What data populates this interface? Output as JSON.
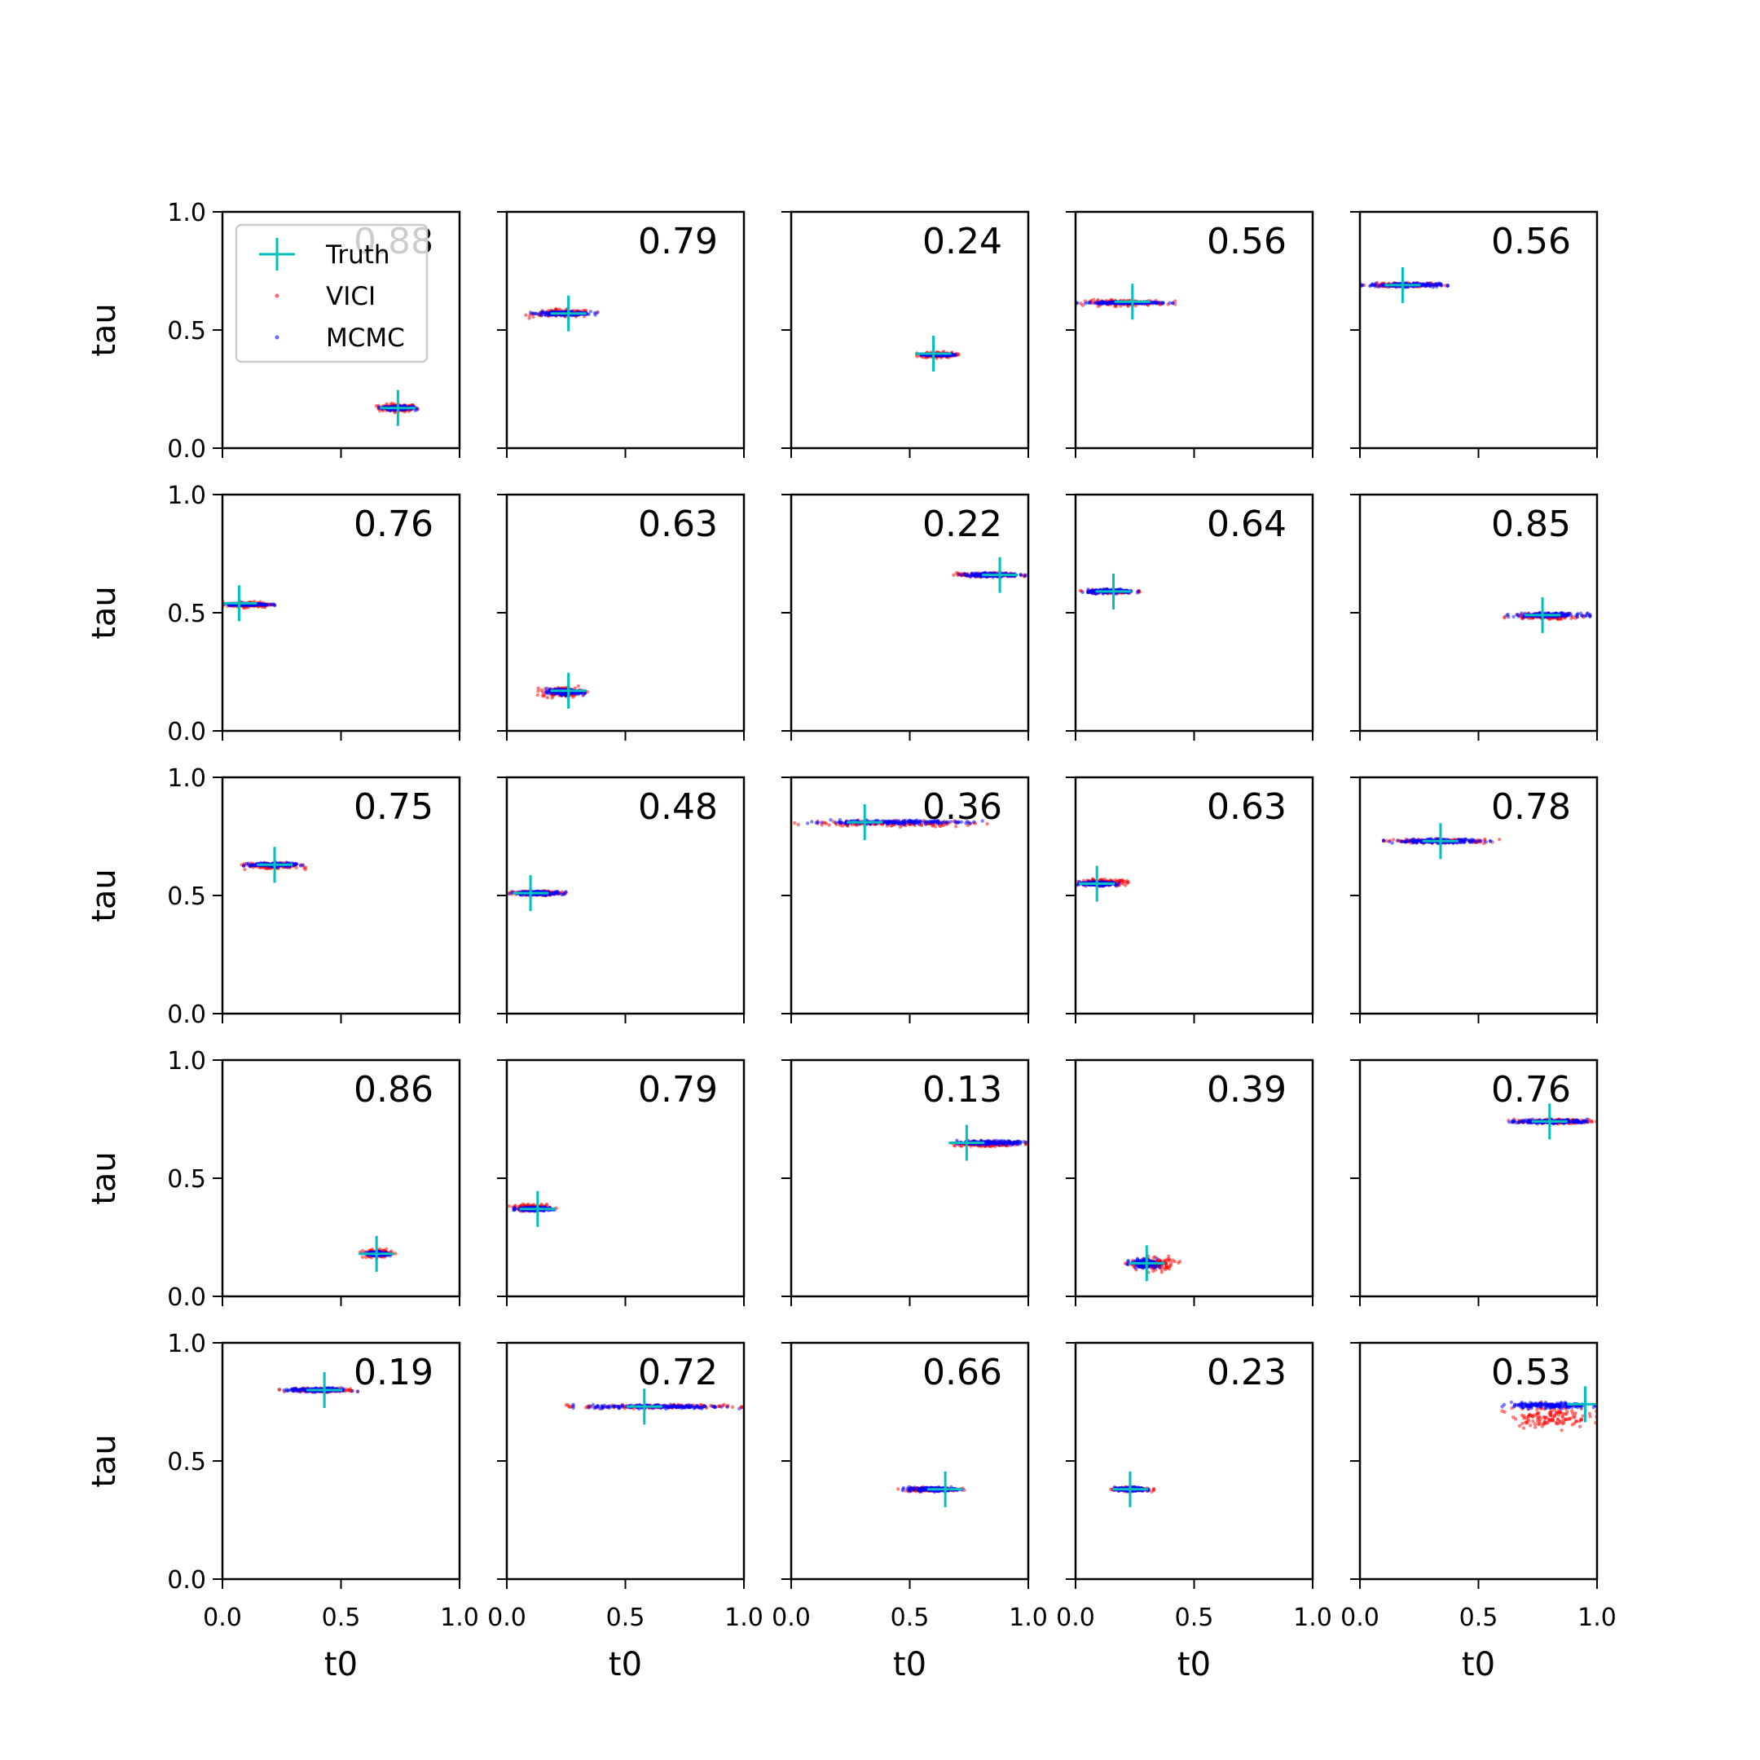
{
  "chart_data": {
    "type": "scatter",
    "grid": false,
    "xlabel": "t0",
    "ylabel": "tau",
    "xlim": [
      0,
      1
    ],
    "ylim": [
      0,
      1
    ],
    "xticks": [
      "0.0",
      "0.5",
      "1.0"
    ],
    "yticks": [
      "0.0",
      "0.5",
      "1.0"
    ],
    "legend": {
      "placement": "upper-left",
      "entries": [
        {
          "name": "Truth",
          "marker": "plus",
          "color": "#00bfbf"
        },
        {
          "name": "VICI",
          "marker": "dot",
          "color": "#ff0000"
        },
        {
          "name": "MCMC",
          "marker": "dot",
          "color": "#0000ff"
        }
      ]
    },
    "colors": {
      "truth": "#00bfbf",
      "vici": "#ff0000",
      "mcmc": "#0000ff"
    },
    "panels": [
      {
        "value": "0.88",
        "truth": [
          0.74,
          0.17
        ],
        "vici": {
          "x": [
            0.64,
            0.84
          ],
          "y": [
            0.15,
            0.19
          ]
        },
        "mcmc": {
          "x": [
            0.66,
            0.82
          ],
          "y": [
            0.16,
            0.18
          ]
        }
      },
      {
        "value": "0.79",
        "truth": [
          0.26,
          0.57
        ],
        "vici": {
          "x": [
            0.08,
            0.39
          ],
          "y": [
            0.55,
            0.59
          ]
        },
        "mcmc": {
          "x": [
            0.1,
            0.38
          ],
          "y": [
            0.56,
            0.58
          ]
        }
      },
      {
        "value": "0.24",
        "truth": [
          0.6,
          0.4
        ],
        "vici": {
          "x": [
            0.53,
            0.71
          ],
          "y": [
            0.38,
            0.41
          ]
        },
        "mcmc": {
          "x": [
            0.54,
            0.7
          ],
          "y": [
            0.39,
            0.4
          ]
        }
      },
      {
        "value": "0.56",
        "truth": [
          0.24,
          0.62
        ],
        "vici": {
          "x": [
            0.0,
            0.42
          ],
          "y": [
            0.6,
            0.63
          ]
        },
        "mcmc": {
          "x": [
            0.0,
            0.41
          ],
          "y": [
            0.61,
            0.62
          ]
        }
      },
      {
        "value": "0.56",
        "truth": [
          0.18,
          0.69
        ],
        "vici": {
          "x": [
            0.0,
            0.36
          ],
          "y": [
            0.68,
            0.7
          ]
        },
        "mcmc": {
          "x": [
            0.0,
            0.37
          ],
          "y": [
            0.68,
            0.7
          ]
        }
      },
      {
        "value": "0.76",
        "truth": [
          0.07,
          0.54
        ],
        "vici": {
          "x": [
            0.0,
            0.23
          ],
          "y": [
            0.52,
            0.55
          ]
        },
        "mcmc": {
          "x": [
            0.0,
            0.22
          ],
          "y": [
            0.53,
            0.54
          ]
        }
      },
      {
        "value": "0.63",
        "truth": [
          0.26,
          0.17
        ],
        "vici": {
          "x": [
            0.13,
            0.34
          ],
          "y": [
            0.14,
            0.19
          ]
        },
        "mcmc": {
          "x": [
            0.15,
            0.33
          ],
          "y": [
            0.15,
            0.18
          ]
        }
      },
      {
        "value": "0.22",
        "truth": [
          0.88,
          0.66
        ],
        "vici": {
          "x": [
            0.67,
            0.99
          ],
          "y": [
            0.65,
            0.67
          ]
        },
        "mcmc": {
          "x": [
            0.7,
            0.99
          ],
          "y": [
            0.65,
            0.67
          ]
        }
      },
      {
        "value": "0.64",
        "truth": [
          0.16,
          0.59
        ],
        "vici": {
          "x": [
            0.02,
            0.27
          ],
          "y": [
            0.58,
            0.6
          ]
        },
        "mcmc": {
          "x": [
            0.03,
            0.27
          ],
          "y": [
            0.58,
            0.6
          ]
        }
      },
      {
        "value": "0.85",
        "truth": [
          0.77,
          0.49
        ],
        "vici": {
          "x": [
            0.61,
            0.96
          ],
          "y": [
            0.47,
            0.5
          ]
        },
        "mcmc": {
          "x": [
            0.62,
            0.97
          ],
          "y": [
            0.48,
            0.5
          ]
        }
      },
      {
        "value": "0.75",
        "truth": [
          0.22,
          0.63
        ],
        "vici": {
          "x": [
            0.08,
            0.35
          ],
          "y": [
            0.61,
            0.64
          ]
        },
        "mcmc": {
          "x": [
            0.09,
            0.34
          ],
          "y": [
            0.62,
            0.64
          ]
        }
      },
      {
        "value": "0.48",
        "truth": [
          0.1,
          0.51
        ],
        "vici": {
          "x": [
            0.0,
            0.25
          ],
          "y": [
            0.5,
            0.52
          ]
        },
        "mcmc": {
          "x": [
            0.01,
            0.25
          ],
          "y": [
            0.5,
            0.52
          ]
        }
      },
      {
        "value": "0.36",
        "truth": [
          0.31,
          0.81
        ],
        "vici": {
          "x": [
            0.0,
            0.85
          ],
          "y": [
            0.79,
            0.82
          ]
        },
        "mcmc": {
          "x": [
            0.0,
            0.82
          ],
          "y": [
            0.8,
            0.82
          ]
        }
      },
      {
        "value": "0.63",
        "truth": [
          0.09,
          0.55
        ],
        "vici": {
          "x": [
            0.0,
            0.24
          ],
          "y": [
            0.54,
            0.57
          ]
        },
        "mcmc": {
          "x": [
            0.0,
            0.2
          ],
          "y": [
            0.54,
            0.56
          ]
        }
      },
      {
        "value": "0.78",
        "truth": [
          0.34,
          0.73
        ],
        "vici": {
          "x": [
            0.1,
            0.59
          ],
          "y": [
            0.72,
            0.74
          ]
        },
        "mcmc": {
          "x": [
            0.1,
            0.55
          ],
          "y": [
            0.72,
            0.74
          ]
        }
      },
      {
        "value": "0.86",
        "truth": [
          0.65,
          0.18
        ],
        "vici": {
          "x": [
            0.58,
            0.73
          ],
          "y": [
            0.16,
            0.2
          ]
        },
        "mcmc": {
          "x": [
            0.6,
            0.71
          ],
          "y": [
            0.17,
            0.19
          ]
        }
      },
      {
        "value": "0.79",
        "truth": [
          0.13,
          0.37
        ],
        "vici": {
          "x": [
            0.01,
            0.21
          ],
          "y": [
            0.36,
            0.39
          ]
        },
        "mcmc": {
          "x": [
            0.03,
            0.2
          ],
          "y": [
            0.36,
            0.38
          ]
        }
      },
      {
        "value": "0.13",
        "truth": [
          0.74,
          0.65
        ],
        "vici": {
          "x": [
            0.64,
            0.99
          ],
          "y": [
            0.63,
            0.66
          ]
        },
        "mcmc": {
          "x": [
            0.69,
            0.99
          ],
          "y": [
            0.64,
            0.66
          ]
        }
      },
      {
        "value": "0.39",
        "truth": [
          0.3,
          0.14
        ],
        "vici": {
          "x": [
            0.21,
            0.44
          ],
          "y": [
            0.1,
            0.17
          ]
        },
        "mcmc": {
          "x": [
            0.22,
            0.36
          ],
          "y": [
            0.12,
            0.16
          ]
        }
      },
      {
        "value": "0.76",
        "truth": [
          0.8,
          0.74
        ],
        "vici": {
          "x": [
            0.62,
            1.0
          ],
          "y": [
            0.73,
            0.75
          ]
        },
        "mcmc": {
          "x": [
            0.63,
            1.0
          ],
          "y": [
            0.73,
            0.75
          ]
        }
      },
      {
        "value": "0.19",
        "truth": [
          0.43,
          0.8
        ],
        "vici": {
          "x": [
            0.24,
            0.58
          ],
          "y": [
            0.79,
            0.81
          ]
        },
        "mcmc": {
          "x": [
            0.25,
            0.57
          ],
          "y": [
            0.79,
            0.81
          ]
        }
      },
      {
        "value": "0.72",
        "truth": [
          0.58,
          0.73
        ],
        "vici": {
          "x": [
            0.25,
            0.99
          ],
          "y": [
            0.72,
            0.74
          ]
        },
        "mcmc": {
          "x": [
            0.28,
            0.98
          ],
          "y": [
            0.72,
            0.74
          ]
        }
      },
      {
        "value": "0.66",
        "truth": [
          0.65,
          0.38
        ],
        "vici": {
          "x": [
            0.44,
            0.73
          ],
          "y": [
            0.37,
            0.39
          ]
        },
        "mcmc": {
          "x": [
            0.47,
            0.72
          ],
          "y": [
            0.37,
            0.39
          ]
        }
      },
      {
        "value": "0.23",
        "truth": [
          0.23,
          0.38
        ],
        "vici": {
          "x": [
            0.14,
            0.33
          ],
          "y": [
            0.37,
            0.39
          ]
        },
        "mcmc": {
          "x": [
            0.15,
            0.31
          ],
          "y": [
            0.37,
            0.39
          ]
        }
      },
      {
        "value": "0.53",
        "truth": [
          0.95,
          0.74
        ],
        "vici": {
          "x": [
            0.6,
            1.0
          ],
          "y": [
            0.63,
            0.75
          ]
        },
        "mcmc": {
          "x": [
            0.6,
            1.0
          ],
          "y": [
            0.72,
            0.75
          ]
        }
      }
    ]
  }
}
